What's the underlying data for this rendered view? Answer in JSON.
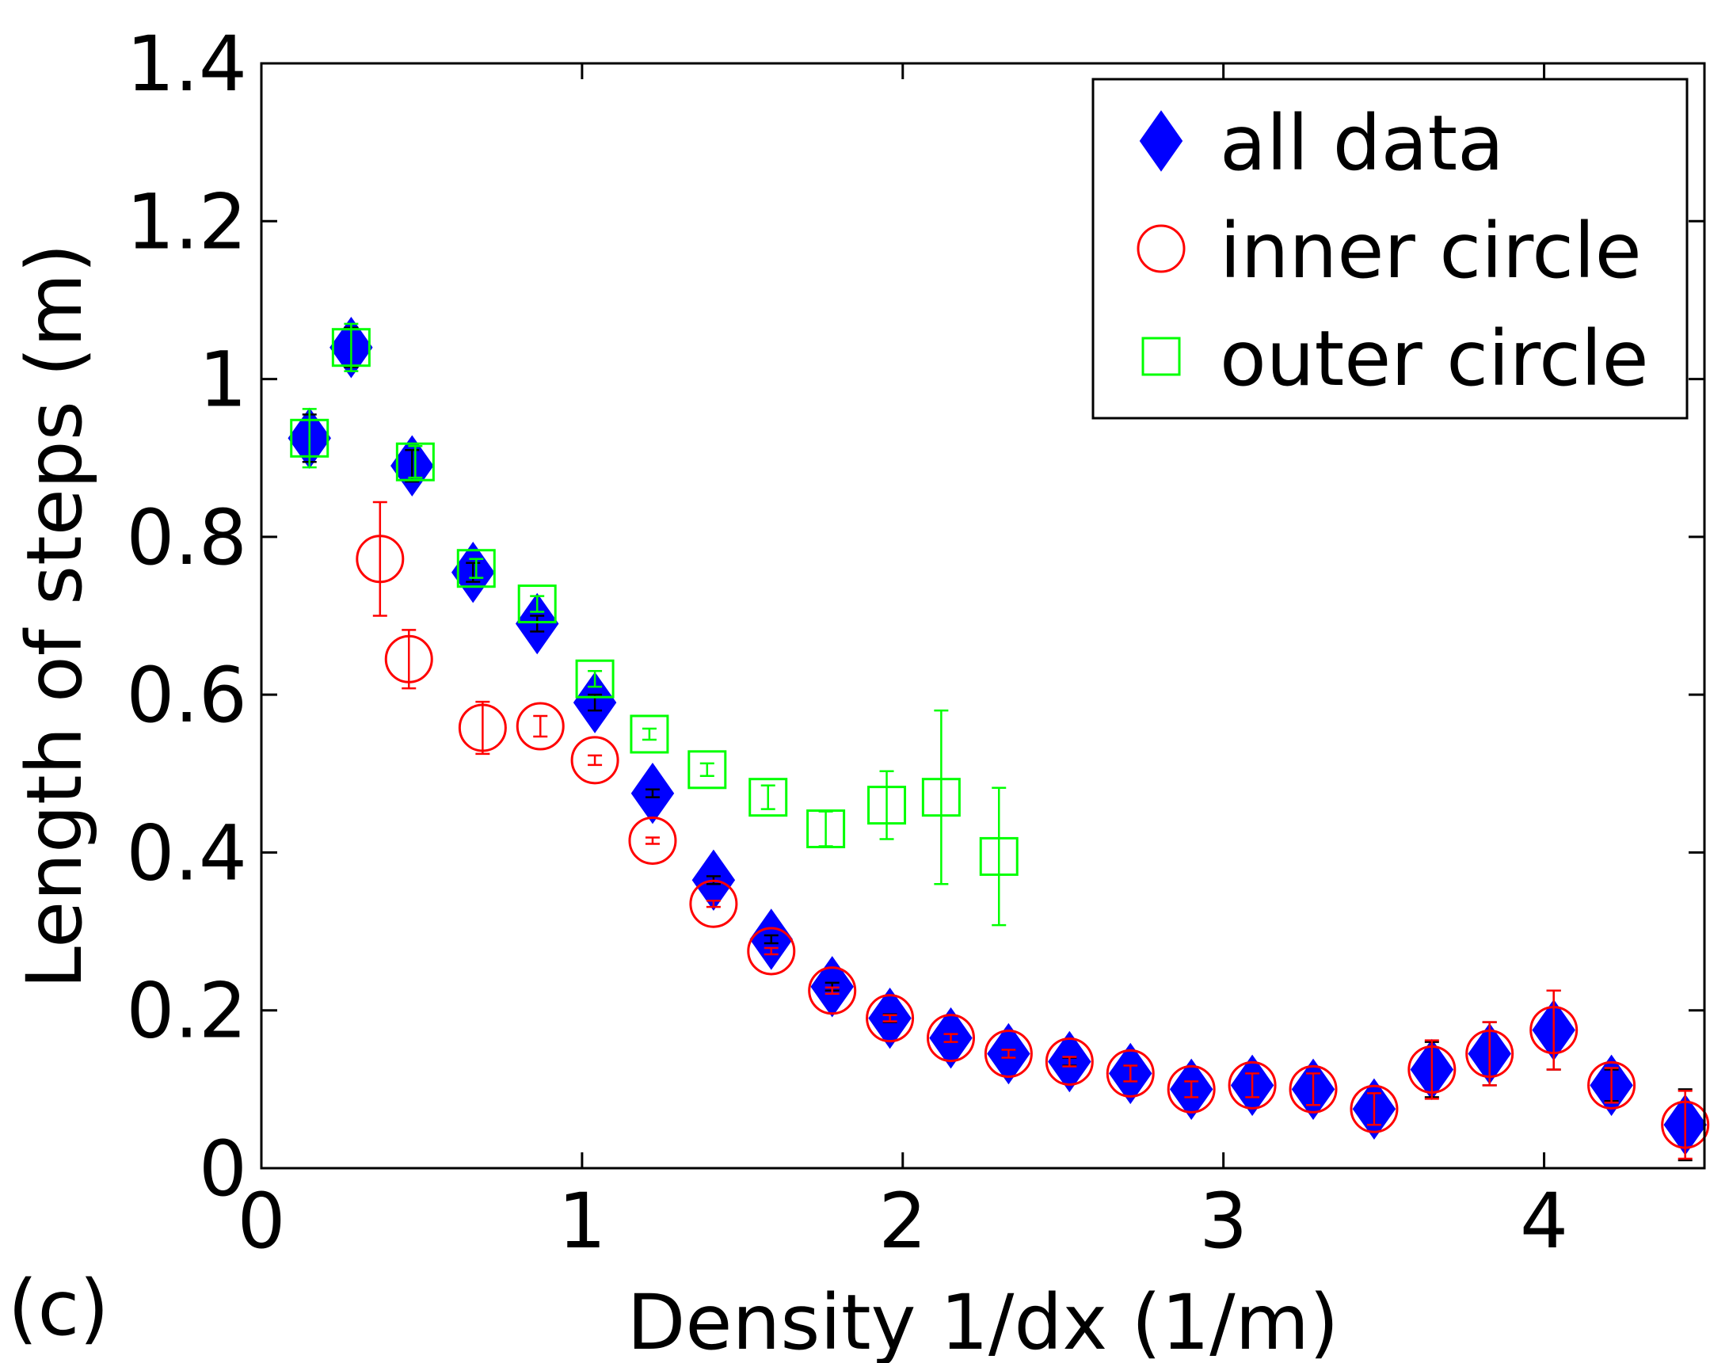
{
  "panel_label": "(c)",
  "colors": {
    "all_data": "#0000ff",
    "inner_circle": "#ff0000",
    "outer_circle": "#00ff00",
    "axes": "#000000"
  },
  "chart_data": {
    "type": "scatter",
    "title": "",
    "xlabel": "Density 1/dx (1/m)",
    "ylabel": "Length of steps (m)",
    "xlim": [
      0,
      4.5
    ],
    "ylim": [
      0,
      1.4
    ],
    "xticks": [
      0,
      1,
      2,
      3,
      4
    ],
    "xtick_labels": [
      "0",
      "1",
      "2",
      "3",
      "4"
    ],
    "yticks": [
      0,
      0.2,
      0.4,
      0.6,
      0.8,
      1,
      1.2,
      1.4
    ],
    "ytick_labels": [
      "0",
      "0.2",
      "0.4",
      "0.6",
      "0.8",
      "1",
      "1.2",
      "1.4"
    ],
    "grid": false,
    "error_bars": true,
    "legend_position": "top-right",
    "series": [
      {
        "name": "all data",
        "marker": "diamond",
        "filled": true,
        "color": "#0000ff",
        "points": [
          {
            "x": 0.15,
            "y": 0.925,
            "err": 0.03
          },
          {
            "x": 0.28,
            "y": 1.04,
            "err": 0.025
          },
          {
            "x": 0.47,
            "y": 0.89,
            "err": 0.02
          },
          {
            "x": 0.66,
            "y": 0.755,
            "err": 0.012
          },
          {
            "x": 0.86,
            "y": 0.69,
            "err": 0.01
          },
          {
            "x": 1.04,
            "y": 0.59,
            "err": 0.01
          },
          {
            "x": 1.22,
            "y": 0.475,
            "err": 0.005
          },
          {
            "x": 1.41,
            "y": 0.365,
            "err": 0.005
          },
          {
            "x": 1.59,
            "y": 0.29,
            "err": 0.005
          },
          {
            "x": 1.78,
            "y": 0.23,
            "err": 0.005
          },
          {
            "x": 1.96,
            "y": 0.19,
            "err": 0.005
          },
          {
            "x": 2.15,
            "y": 0.165,
            "err": 0.005
          },
          {
            "x": 2.33,
            "y": 0.145,
            "err": 0.005
          },
          {
            "x": 2.52,
            "y": 0.135,
            "err": 0.005
          },
          {
            "x": 2.71,
            "y": 0.12,
            "err": 0.01
          },
          {
            "x": 2.9,
            "y": 0.1,
            "err": 0.01
          },
          {
            "x": 3.09,
            "y": 0.105,
            "err": 0.015
          },
          {
            "x": 3.28,
            "y": 0.1,
            "err": 0.02
          },
          {
            "x": 3.47,
            "y": 0.075,
            "err": 0.02
          },
          {
            "x": 3.65,
            "y": 0.125,
            "err": 0.035
          },
          {
            "x": 3.83,
            "y": 0.145,
            "err": 0.04
          },
          {
            "x": 4.03,
            "y": 0.175,
            "err": 0.05
          },
          {
            "x": 4.21,
            "y": 0.105,
            "err": 0.02
          },
          {
            "x": 4.44,
            "y": 0.055,
            "err": 0.045
          }
        ]
      },
      {
        "name": "inner circle",
        "marker": "circle",
        "filled": false,
        "color": "#ff0000",
        "points": [
          {
            "x": 0.37,
            "y": 0.772,
            "err": 0.072
          },
          {
            "x": 0.46,
            "y": 0.645,
            "err": 0.037
          },
          {
            "x": 0.69,
            "y": 0.558,
            "err": 0.033
          },
          {
            "x": 0.87,
            "y": 0.56,
            "err": 0.013
          },
          {
            "x": 1.04,
            "y": 0.517,
            "err": 0.006
          },
          {
            "x": 1.22,
            "y": 0.415,
            "err": 0.004
          },
          {
            "x": 1.41,
            "y": 0.335,
            "err": 0.004
          },
          {
            "x": 1.59,
            "y": 0.275,
            "err": 0.004
          },
          {
            "x": 1.78,
            "y": 0.225,
            "err": 0.004
          },
          {
            "x": 1.96,
            "y": 0.19,
            "err": 0.004
          },
          {
            "x": 2.15,
            "y": 0.165,
            "err": 0.005
          },
          {
            "x": 2.33,
            "y": 0.145,
            "err": 0.005
          },
          {
            "x": 2.52,
            "y": 0.135,
            "err": 0.006
          },
          {
            "x": 2.71,
            "y": 0.12,
            "err": 0.01
          },
          {
            "x": 2.9,
            "y": 0.1,
            "err": 0.01
          },
          {
            "x": 3.09,
            "y": 0.105,
            "err": 0.015
          },
          {
            "x": 3.28,
            "y": 0.1,
            "err": 0.02
          },
          {
            "x": 3.47,
            "y": 0.075,
            "err": 0.02
          },
          {
            "x": 3.65,
            "y": 0.125,
            "err": 0.037
          },
          {
            "x": 3.83,
            "y": 0.145,
            "err": 0.04
          },
          {
            "x": 4.03,
            "y": 0.175,
            "err": 0.05
          },
          {
            "x": 4.21,
            "y": 0.105,
            "err": 0.022
          },
          {
            "x": 4.44,
            "y": 0.055,
            "err": 0.043
          }
        ]
      },
      {
        "name": "outer circle",
        "marker": "square",
        "filled": false,
        "color": "#00ff00",
        "points": [
          {
            "x": 0.15,
            "y": 0.925,
            "err": 0.037
          },
          {
            "x": 0.28,
            "y": 1.04,
            "err": 0.03
          },
          {
            "x": 0.48,
            "y": 0.895,
            "err": 0.02
          },
          {
            "x": 0.67,
            "y": 0.76,
            "err": 0.012
          },
          {
            "x": 0.86,
            "y": 0.715,
            "err": 0.01
          },
          {
            "x": 1.04,
            "y": 0.62,
            "err": 0.01
          },
          {
            "x": 1.21,
            "y": 0.55,
            "err": 0.007
          },
          {
            "x": 1.39,
            "y": 0.505,
            "err": 0.008
          },
          {
            "x": 1.58,
            "y": 0.47,
            "err": 0.015
          },
          {
            "x": 1.76,
            "y": 0.43,
            "err": 0.022
          },
          {
            "x": 1.95,
            "y": 0.46,
            "err": 0.043
          },
          {
            "x": 2.12,
            "y": 0.47,
            "err": 0.11
          },
          {
            "x": 2.3,
            "y": 0.395,
            "err": 0.087
          }
        ]
      }
    ]
  }
}
